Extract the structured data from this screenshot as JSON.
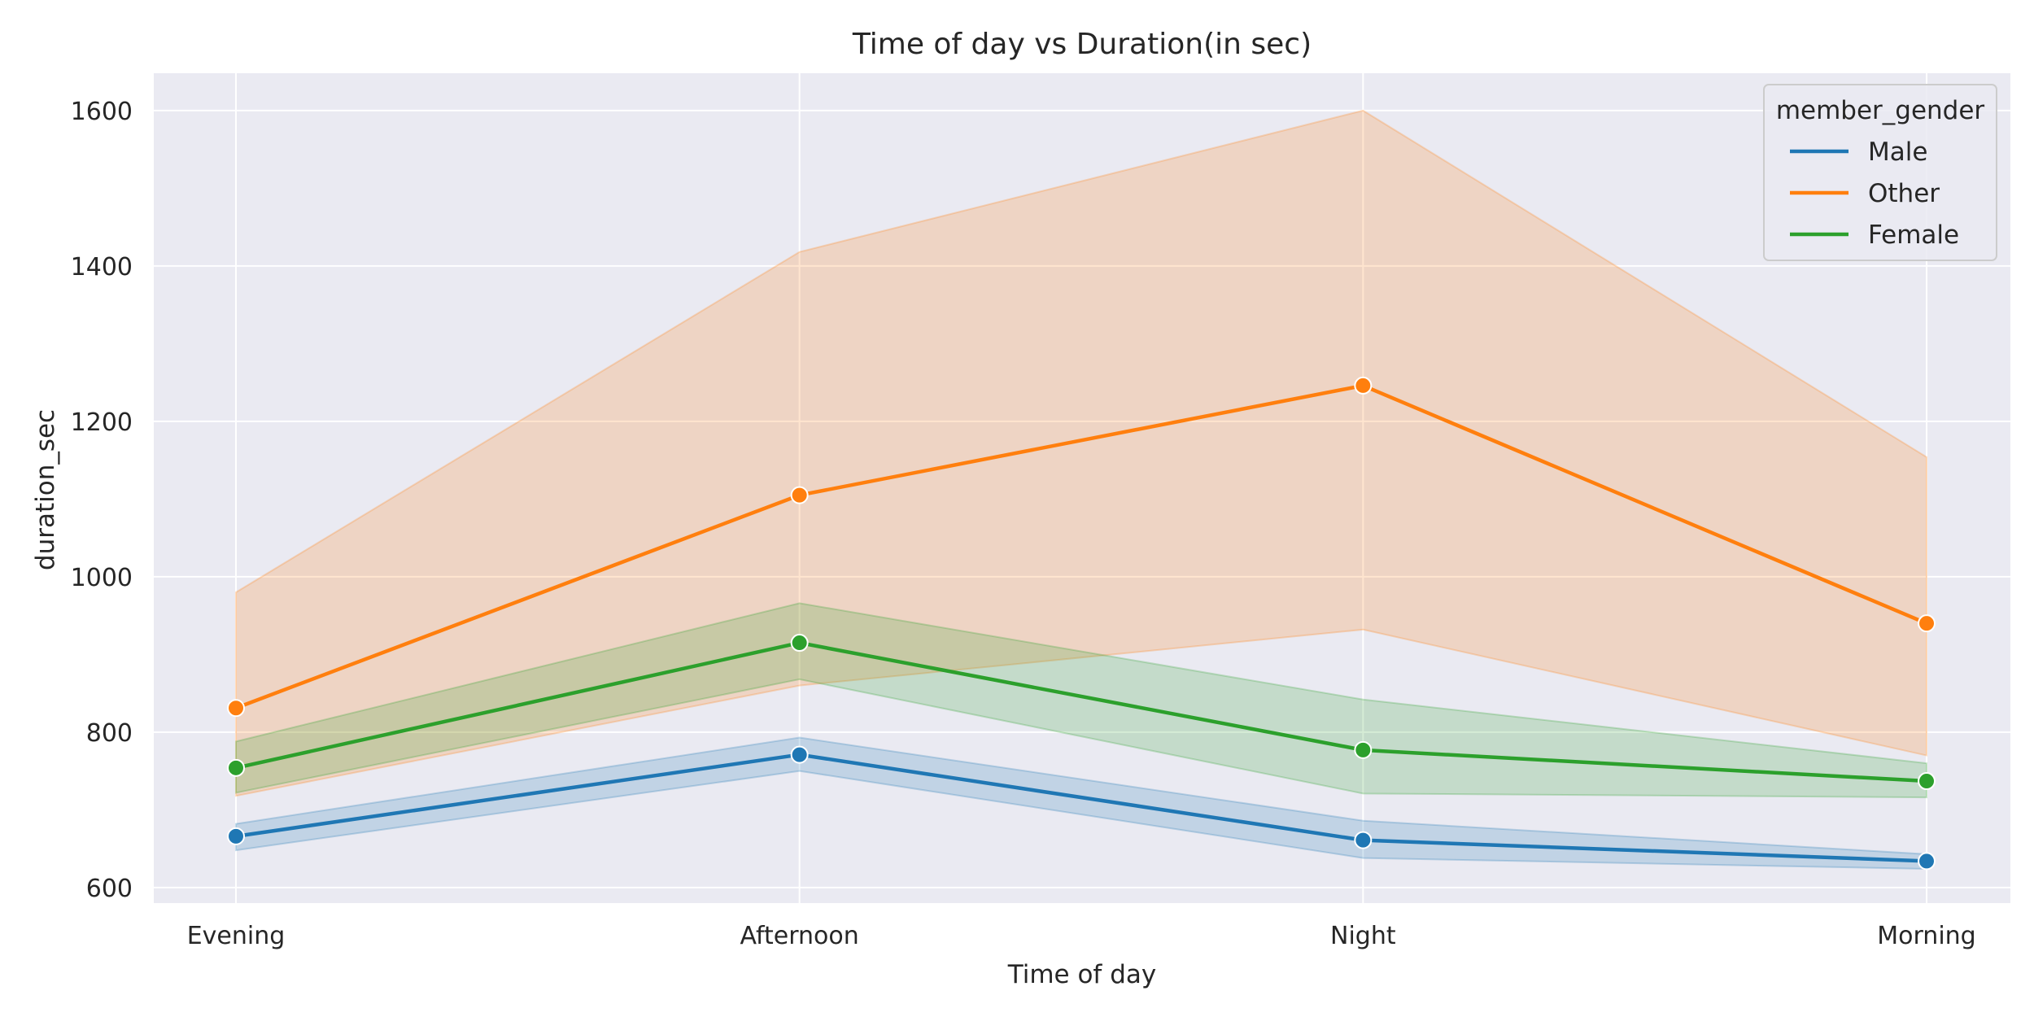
{
  "chart_data": {
    "type": "line",
    "title": "Time of day vs Duration(in sec)",
    "xlabel": "Time of day",
    "ylabel": "duration_sec",
    "categories": [
      "Evening",
      "Afternoon",
      "Night",
      "Morning"
    ],
    "ylim": [
      580,
      1648
    ],
    "yticks": [
      600,
      800,
      1000,
      1200,
      1400,
      1600
    ],
    "grid": true,
    "legend": {
      "title": "member_gender",
      "placement": "top-right"
    },
    "series": [
      {
        "name": "Male",
        "color": "#1f77b4",
        "values": [
          666,
          771,
          661,
          634
        ],
        "ci_low": [
          648,
          750,
          638,
          624
        ],
        "ci_high": [
          682,
          793,
          686,
          643
        ]
      },
      {
        "name": "Other",
        "color": "#ff7f0e",
        "values": [
          831,
          1105,
          1246,
          940
        ],
        "ci_low": [
          718,
          860,
          932,
          770
        ],
        "ci_high": [
          980,
          1418,
          1600,
          1154
        ]
      },
      {
        "name": "Female",
        "color": "#2ca02c",
        "values": [
          754,
          915,
          777,
          737
        ],
        "ci_low": [
          722,
          868,
          721,
          716
        ],
        "ci_high": [
          788,
          966,
          842,
          760
        ]
      }
    ]
  }
}
